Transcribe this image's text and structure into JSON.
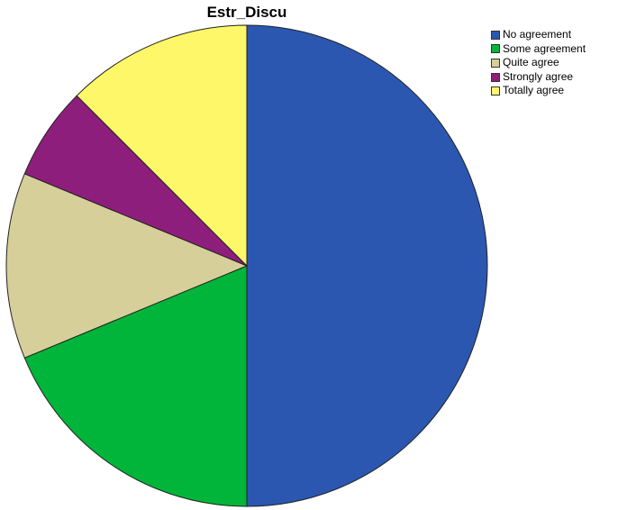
{
  "chart_data": {
    "type": "pie",
    "title": "Estr_Discu",
    "categories": [
      "No agreement",
      "Some agreement",
      "Quite agree",
      "Strongly agree",
      "Totally agree"
    ],
    "values": [
      50,
      18.75,
      12.5,
      6.25,
      12.5
    ],
    "colors": [
      "#2b57b0",
      "#00b53a",
      "#d6cf99",
      "#8e1e7c",
      "#fff76a"
    ],
    "start_angle": "12 o'clock",
    "direction": "clockwise",
    "legend_position": "top-right"
  }
}
